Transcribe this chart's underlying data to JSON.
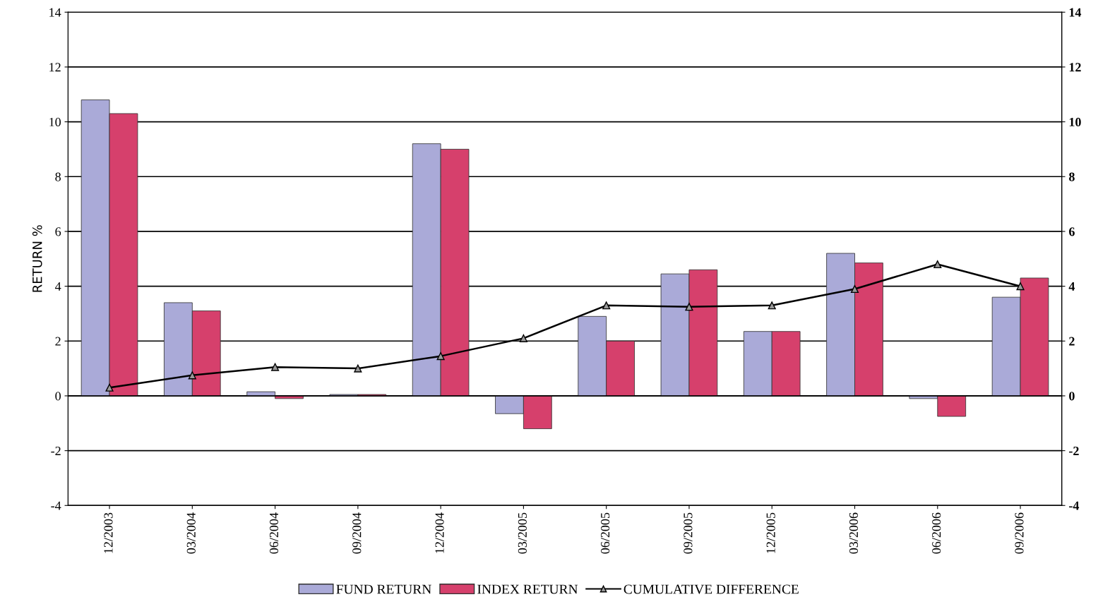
{
  "chart_data": {
    "type": "bar",
    "ylabel": "RETURN %",
    "categories": [
      "12/2003",
      "03/2004",
      "06/2004",
      "09/2004",
      "12/2004",
      "03/2005",
      "06/2005",
      "09/2005",
      "12/2005",
      "03/2006",
      "06/2006",
      "09/2006"
    ],
    "series": [
      {
        "name": "FUND RETURN",
        "color": "#aaaad8",
        "values": [
          10.8,
          3.4,
          0.15,
          0.05,
          9.2,
          -0.65,
          2.9,
          4.45,
          2.35,
          5.2,
          -0.1,
          3.6
        ]
      },
      {
        "name": "INDEX RETURN",
        "color": "#d6406c",
        "values": [
          10.3,
          3.1,
          -0.1,
          0.05,
          9.0,
          -1.2,
          2.0,
          4.6,
          2.35,
          4.85,
          -0.75,
          4.3
        ]
      },
      {
        "name": "CUMULATIVE DIFFERENCE",
        "type": "line",
        "color": "#000000",
        "marker": "triangle",
        "values": [
          0.3,
          0.75,
          1.05,
          1.0,
          1.45,
          2.1,
          3.3,
          3.25,
          3.3,
          3.9,
          4.8,
          4.0
        ]
      }
    ],
    "ylim": [
      -4,
      14
    ],
    "yticks": [
      -4,
      -2,
      0,
      2,
      4,
      6,
      8,
      10,
      12,
      14
    ],
    "y2lim": [
      -4,
      14
    ],
    "y2ticks": [
      -4,
      -2,
      0,
      2,
      4,
      6,
      8,
      10,
      12,
      14
    ],
    "grid": "y",
    "legend": "bottom"
  }
}
